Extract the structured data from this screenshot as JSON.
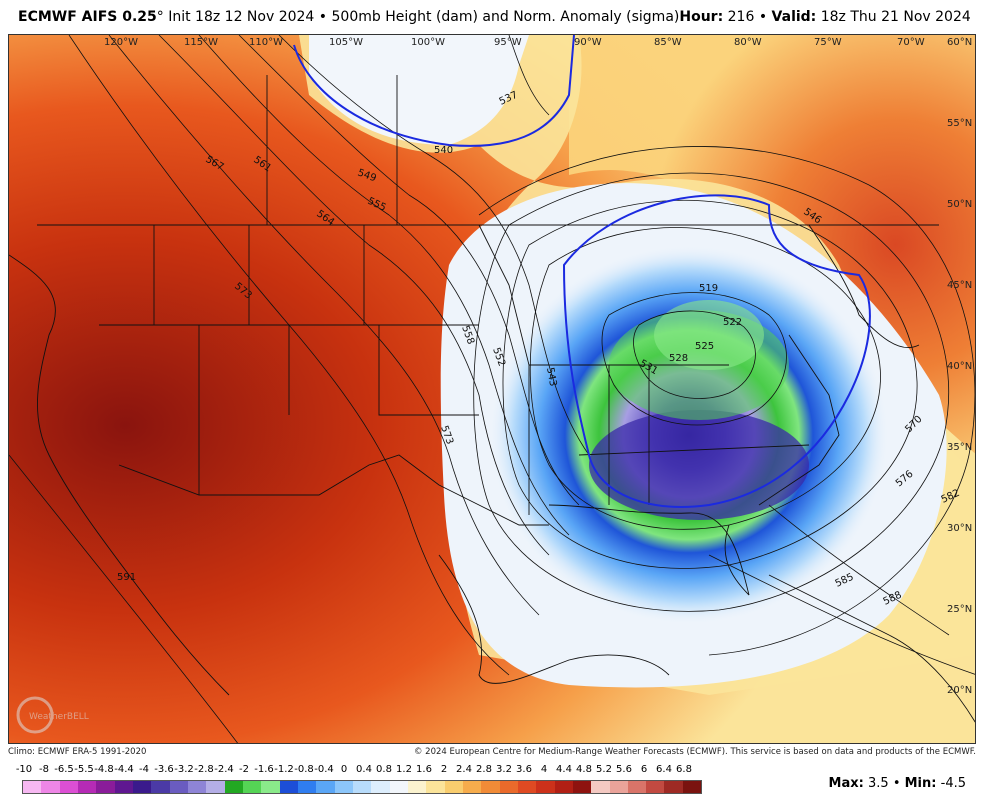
{
  "header": {
    "model": "ECMWF AIFS 0.25",
    "degree_symbol": "°",
    "init": "Init 18z 12 Nov 2024",
    "bullet": "•",
    "product": "500mb Height (dam) and Norm. Anomaly (sigma)",
    "hour_label": "Hour:",
    "hour_value": "216",
    "valid_label": "Valid:",
    "valid_value": "18z Thu 21 Nov 2024"
  },
  "map": {
    "longitudes": [
      "120°W",
      "115°W",
      "110°W",
      "105°W",
      "100°W",
      "95°W",
      "90°W",
      "85°W",
      "80°W",
      "75°W",
      "70°W"
    ],
    "latitudes": [
      "60°N",
      "55°N",
      "50°N",
      "45°N",
      "40°N",
      "35°N",
      "30°N",
      "25°N",
      "20°N"
    ],
    "contour_labels": [
      "537",
      "540",
      "567",
      "561",
      "549",
      "555",
      "564",
      "573",
      "558",
      "552",
      "543",
      "546",
      "519",
      "522",
      "525",
      "528",
      "531",
      "570",
      "576",
      "582",
      "585",
      "588",
      "591",
      "573"
    ],
    "trough_center_anomaly_color": "#3a2aa8",
    "ridge_color": "#c8320f",
    "watermark": "WeatherBELL"
  },
  "footer": {
    "climo": "Climo: ECMWF ERA-5 1991-2020",
    "copyright": "© 2024 European Centre for Medium-Range Weather Forecasts (ECMWF). This service is based on data and products of the ECMWF."
  },
  "colorbar": {
    "ticks": [
      "-10",
      "-8",
      "-6.5",
      "-5.5",
      "-4.8",
      "-4.4",
      "-4",
      "-3.6",
      "-3.2",
      "-2.8",
      "-2.4",
      "-2",
      "-1.6",
      "-1.2",
      "-0.8",
      "-0.4",
      "0",
      "0.4",
      "0.8",
      "1.2",
      "1.6",
      "2",
      "2.4",
      "2.8",
      "3.2",
      "3.6",
      "4",
      "4.4",
      "4.8",
      "5.2",
      "5.6",
      "6",
      "6.4",
      "6.8"
    ],
    "colors": [
      "#f7b8f2",
      "#ee86e6",
      "#dc4fd4",
      "#b52bb5",
      "#8a1c9a",
      "#5f1791",
      "#3a1a8c",
      "#4b3aa6",
      "#6a5cc0",
      "#8e84d6",
      "#b4aee6",
      "#22a822",
      "#55d455",
      "#8aea8a",
      "#1c4ed8",
      "#2f7df0",
      "#5aa6f6",
      "#8cc6fa",
      "#b8dcfb",
      "#ddeefd",
      "#f2f6fb",
      "#fbf3cf",
      "#fbe49a",
      "#f9cd6e",
      "#f6ac4c",
      "#f18b37",
      "#ea6a2b",
      "#df4a22",
      "#cc311a",
      "#b11f14",
      "#8e130f",
      "#f4c9c2",
      "#eaa39a",
      "#d97469",
      "#c24a41",
      "#9e2a24",
      "#7a130f"
    ]
  },
  "stats": {
    "max_label": "Max:",
    "max_value": "3.5",
    "min_label": "Min:",
    "min_value": "-4.5"
  }
}
